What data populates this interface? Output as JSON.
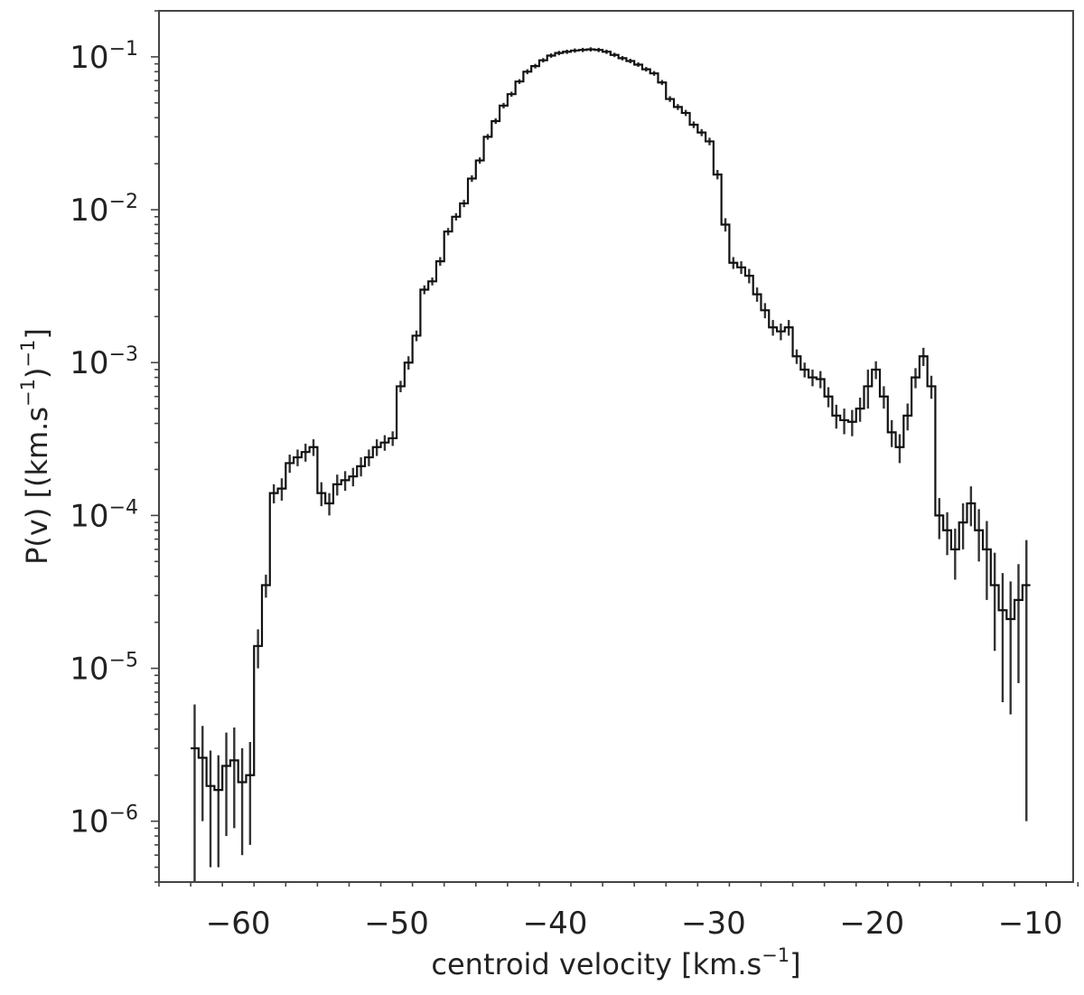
{
  "chart_data": {
    "type": "line",
    "style": "step-histogram-with-errorbars",
    "title": "",
    "xlabel": "centroid velocity [km.s",
    "xlabel_sup": "−1",
    "xlabel_end": "]",
    "ylabel": "P(v) [(km.s",
    "ylabel_sup1": "−1",
    "ylabel_mid": ")",
    "ylabel_sup2": "−1",
    "ylabel_end": "]",
    "xlim": [
      -65,
      -7.3
    ],
    "ylim": [
      4e-07,
      0.2
    ],
    "yscale": "log",
    "grid": false,
    "legend": "none",
    "line_color": "#111111",
    "errorbar_color": "#333333",
    "x_ticks": [
      -60,
      -50,
      -40,
      -30,
      -20,
      -10
    ],
    "x_tick_labels": [
      "−60",
      "−50",
      "−40",
      "−30",
      "−20",
      "−10"
    ],
    "y_ticks": [
      1e-06,
      1e-05,
      0.0001,
      0.001,
      0.01,
      0.1
    ],
    "y_tick_base": "10",
    "y_tick_exponents": [
      "−6",
      "−5",
      "−4",
      "−3",
      "−2",
      "−1"
    ],
    "series": [
      {
        "x": [
          -62.75,
          -62.25,
          -61.75,
          -61.25,
          -60.75,
          -60.25,
          -59.75,
          -59.25,
          -58.75,
          -58.25,
          -57.75,
          -57.25,
          -56.75,
          -56.25,
          -55.75,
          -55.25,
          -54.75,
          -54.25,
          -53.75,
          -53.25,
          -52.75,
          -52.25,
          -51.75,
          -51.25,
          -50.75,
          -50.25,
          -49.75,
          -49.25,
          -48.75,
          -48.25,
          -47.75,
          -47.25,
          -46.75,
          -46.25,
          -45.75,
          -45.25,
          -44.75,
          -44.25,
          -43.75,
          -43.25,
          -42.75,
          -42.25,
          -41.75,
          -41.25,
          -40.75,
          -40.25,
          -39.75,
          -39.25,
          -38.75,
          -38.25,
          -37.75,
          -37.25,
          -36.75,
          -36.25,
          -35.75,
          -35.25,
          -34.75,
          -34.25,
          -33.75,
          -33.25,
          -32.75,
          -32.25,
          -31.75,
          -31.25,
          -30.75,
          -30.25,
          -29.75,
          -29.25,
          -28.75,
          -28.25,
          -27.75,
          -27.25,
          -26.75,
          -26.25,
          -25.75,
          -25.25,
          -24.75,
          -24.25,
          -23.75,
          -23.25,
          -22.75,
          -22.25,
          -21.75,
          -21.25,
          -20.75,
          -20.25,
          -19.75,
          -19.25,
          -18.75,
          -18.25,
          -17.75,
          -17.25,
          -16.75,
          -16.25,
          -15.75,
          -15.25,
          -14.75,
          -14.25,
          -13.75,
          -13.25,
          -12.75,
          -12.25,
          -11.75,
          -11.25,
          -10.75,
          -10.25
        ],
        "values": [
          3e-06,
          2.6e-06,
          1.7e-06,
          1.6e-06,
          2.3e-06,
          2.5e-06,
          1.8e-06,
          2e-06,
          1.4e-05,
          3.5e-05,
          0.00014,
          0.00015,
          0.00022,
          0.00024,
          0.00026,
          0.00028,
          0.00014,
          0.00012,
          0.00016,
          0.00017,
          0.00018,
          0.00021,
          0.00024,
          0.00028,
          0.0003,
          0.00032,
          0.0007,
          0.001,
          0.0015,
          0.003,
          0.0034,
          0.0046,
          0.0072,
          0.009,
          0.011,
          0.016,
          0.021,
          0.03,
          0.038,
          0.048,
          0.057,
          0.069,
          0.08,
          0.087,
          0.095,
          0.102,
          0.106,
          0.108,
          0.11,
          0.111,
          0.112,
          0.111,
          0.108,
          0.103,
          0.098,
          0.094,
          0.089,
          0.083,
          0.078,
          0.068,
          0.053,
          0.047,
          0.043,
          0.036,
          0.032,
          0.028,
          0.017,
          0.008,
          0.0045,
          0.0042,
          0.0037,
          0.0028,
          0.0022,
          0.0017,
          0.0016,
          0.0017,
          0.0011,
          0.0009,
          0.0008,
          0.00078,
          0.0006,
          0.00045,
          0.00042,
          0.00041,
          0.0005,
          0.0007,
          0.0009,
          0.0006,
          0.00035,
          0.00028,
          0.00045,
          0.0008,
          0.0011,
          0.0007,
          0.0001,
          8e-05,
          6e-05,
          9e-05,
          0.00012,
          8e-05,
          6e-05,
          3.5e-05,
          2.4e-05,
          2.1e-05,
          2.8e-05,
          3.5e-05
        ],
        "errors": [
          2.8e-06,
          1.6e-06,
          1.2e-06,
          1.1e-06,
          1.5e-06,
          1.6e-06,
          1.2e-06,
          1.3e-06,
          4e-06,
          6e-06,
          2e-05,
          2.5e-05,
          3e-05,
          3e-05,
          3.5e-05,
          3.5e-05,
          2.5e-05,
          2e-05,
          2.5e-05,
          2.5e-05,
          2.5e-05,
          3e-05,
          3e-05,
          3.5e-05,
          3.5e-05,
          3.5e-05,
          6e-05,
          0.0001,
          0.00012,
          0.0002,
          0.0002,
          0.0003,
          0.0004,
          0.0005,
          0.0006,
          0.0008,
          0.001,
          0.0013,
          0.0016,
          0.002,
          0.0022,
          0.0025,
          0.003,
          0.003,
          0.0032,
          0.0034,
          0.0035,
          0.0035,
          0.0036,
          0.0036,
          0.0036,
          0.0036,
          0.0035,
          0.0034,
          0.0033,
          0.0032,
          0.003,
          0.0029,
          0.0028,
          0.0026,
          0.0023,
          0.0021,
          0.002,
          0.0018,
          0.0017,
          0.0016,
          0.0012,
          0.0008,
          0.0004,
          0.0004,
          0.0004,
          0.0003,
          0.00025,
          0.0002,
          0.0002,
          0.0002,
          0.00012,
          0.0001,
          0.0001,
          0.0001,
          9e-05,
          8e-05,
          8e-05,
          8e-05,
          9e-05,
          0.0002,
          0.00012,
          0.0001,
          7e-05,
          6e-05,
          9e-05,
          0.00012,
          0.00015,
          0.00012,
          3e-05,
          2.5e-05,
          2.2e-05,
          3e-05,
          3.5e-05,
          3e-05,
          3.2e-05,
          2.2e-05,
          1.8e-05,
          1.6e-05,
          2e-05,
          3.4e-05
        ]
      }
    ]
  }
}
